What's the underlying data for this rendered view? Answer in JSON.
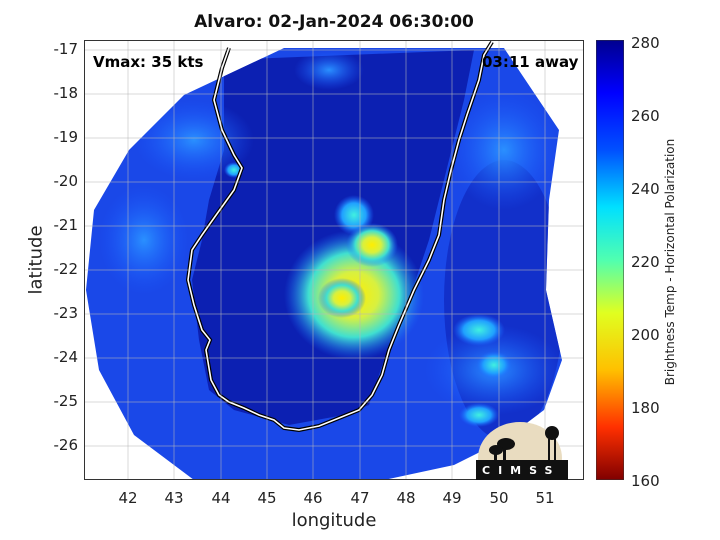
{
  "title": "Alvaro: 02-Jan-2024 06:30:00",
  "vmax": "Vmax: 35 kts",
  "time_away": "03:11 away",
  "xlabel": "longitude",
  "ylabel": "latitude",
  "colorbar_label": "Brightness Temp - Horizontal Polarization",
  "logo_text": "CIMSS",
  "x_ticks": [
    "42",
    "43",
    "44",
    "45",
    "46",
    "47",
    "48",
    "49",
    "50",
    "51"
  ],
  "y_ticks": [
    "-17",
    "-18",
    "-19",
    "-20",
    "-21",
    "-22",
    "-23",
    "-24",
    "-25",
    "-26"
  ],
  "colorbar_ticks": [
    "280",
    "260",
    "240",
    "220",
    "200",
    "180",
    "160"
  ],
  "colorbar_range": [
    160,
    280
  ],
  "map_extent": {
    "lon": [
      41.1,
      51.9
    ],
    "lat": [
      -26.75,
      -16.75
    ]
  }
}
